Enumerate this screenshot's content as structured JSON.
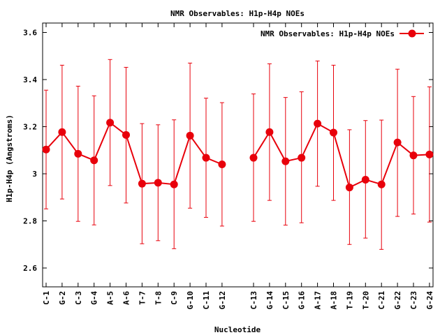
{
  "chart_data": {
    "type": "line",
    "title": "NMR Observables: H1p-H4p NOEs",
    "xlabel": "Nucleotide",
    "ylabel": "H1p-H4p (Angstroms)",
    "legend_position": "top-right",
    "grid": false,
    "error_bars": true,
    "ylim": [
      2.52,
      3.64
    ],
    "yticks": [
      2.6,
      2.8,
      3,
      3.2,
      3.4,
      3.6
    ],
    "ytick_labels": [
      "2.6",
      "2.8",
      "3",
      "3.2",
      "3.4",
      "3.6"
    ],
    "series_color": "#e8000b",
    "series": [
      {
        "name": "NMR Observables: H1p-H4p NOEs",
        "segments": [
          {
            "categories": [
              "C-1",
              "G-2",
              "C-3",
              "G-4",
              "A-5",
              "A-6",
              "T-7",
              "T-8",
              "C-9",
              "G-10",
              "C-11",
              "G-12"
            ],
            "values": [
              3.103,
              3.177,
              3.085,
              3.057,
              3.217,
              3.165,
              2.958,
              2.962,
              2.955,
              3.162,
              3.068,
              3.04
            ],
            "error_low": [
              2.851,
              2.893,
              2.798,
              2.783,
              2.95,
              2.876,
              2.703,
              2.716,
              2.682,
              2.854,
              2.815,
              2.778
            ],
            "error_high": [
              3.355,
              3.461,
              3.372,
              3.331,
              3.485,
              3.452,
              3.213,
              3.208,
              3.229,
              3.47,
              3.321,
              3.302
            ]
          },
          {
            "categories": [
              "C-13",
              "G-14",
              "C-15",
              "G-16",
              "A-17",
              "A-18",
              "T-19",
              "T-20",
              "C-21",
              "G-22",
              "C-23",
              "G-24"
            ],
            "values": [
              3.068,
              3.177,
              3.053,
              3.068,
              3.213,
              3.175,
              2.942,
              2.975,
              2.955,
              3.133,
              3.078,
              3.082
            ],
            "error_low": [
              2.798,
              2.887,
              2.782,
              2.792,
              2.947,
              2.887,
              2.7,
              2.727,
              2.679,
              2.819,
              2.829,
              2.795
            ],
            "error_high": [
              3.339,
              3.467,
              3.324,
              3.348,
              3.479,
              3.461,
              3.187,
              3.226,
              3.228,
              3.444,
              3.328,
              3.369
            ]
          }
        ]
      }
    ]
  }
}
